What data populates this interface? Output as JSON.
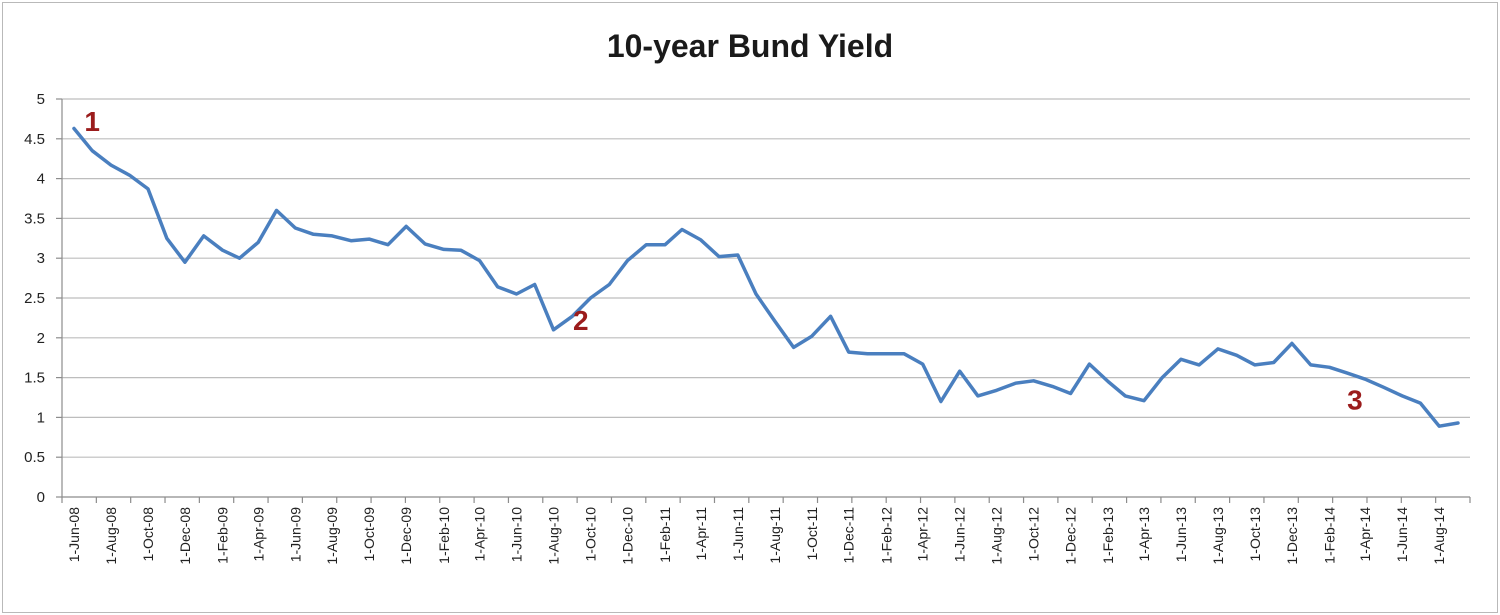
{
  "chart_data": {
    "type": "line",
    "title": "10-year Bund Yield",
    "xlabel": "",
    "ylabel": "",
    "ylim": [
      0,
      5
    ],
    "yticks": [
      "0",
      "0.5",
      "1",
      "1.5",
      "2",
      "2.5",
      "3",
      "3.5",
      "4",
      "4.5",
      "5"
    ],
    "grid": true,
    "x_tick_labels": [
      "1-Jun-08",
      "1-Aug-08",
      "1-Oct-08",
      "1-Dec-08",
      "1-Feb-09",
      "1-Apr-09",
      "1-Jun-09",
      "1-Aug-09",
      "1-Oct-09",
      "1-Dec-09",
      "1-Feb-10",
      "1-Apr-10",
      "1-Jun-10",
      "1-Aug-10",
      "1-Oct-10",
      "1-Dec-10",
      "1-Feb-11",
      "1-Apr-11",
      "1-Jun-11",
      "1-Aug-11",
      "1-Oct-11",
      "1-Dec-11",
      "1-Feb-12",
      "1-Apr-12",
      "1-Jun-12",
      "1-Aug-12",
      "1-Oct-12",
      "1-Dec-12",
      "1-Feb-13",
      "1-Apr-13",
      "1-Jun-13",
      "1-Aug-13",
      "1-Oct-13",
      "1-Dec-13",
      "1-Feb-14",
      "1-Apr-14",
      "1-Jun-14",
      "1-Aug-14"
    ],
    "series": [
      {
        "color": "#4a7fbf",
        "x": [
          "2008-06-01",
          "2008-07-01",
          "2008-08-01",
          "2008-09-01",
          "2008-10-01",
          "2008-11-01",
          "2008-12-01",
          "2009-01-01",
          "2009-02-01",
          "2009-03-01",
          "2009-04-01",
          "2009-05-01",
          "2009-06-01",
          "2009-07-01",
          "2009-08-01",
          "2009-09-01",
          "2009-10-01",
          "2009-11-01",
          "2009-12-01",
          "2010-01-01",
          "2010-02-01",
          "2010-03-01",
          "2010-04-01",
          "2010-05-01",
          "2010-06-01",
          "2010-07-01",
          "2010-08-01",
          "2010-09-01",
          "2010-10-01",
          "2010-11-01",
          "2010-12-01",
          "2011-01-01",
          "2011-02-01",
          "2011-03-01",
          "2011-04-01",
          "2011-05-01",
          "2011-06-01",
          "2011-07-01",
          "2011-08-01",
          "2011-09-01",
          "2011-10-01",
          "2011-11-01",
          "2011-12-01",
          "2012-01-01",
          "2012-02-01",
          "2012-03-01",
          "2012-04-01",
          "2012-05-01",
          "2012-06-01",
          "2012-07-01",
          "2012-08-01",
          "2012-09-01",
          "2012-10-01",
          "2012-11-01",
          "2012-12-01",
          "2013-01-01",
          "2013-02-01",
          "2013-03-01",
          "2013-04-01",
          "2013-05-01",
          "2013-06-01",
          "2013-07-01",
          "2013-08-01",
          "2013-09-01",
          "2013-10-01",
          "2013-11-01",
          "2013-12-01",
          "2014-01-01",
          "2014-02-01",
          "2014-03-01",
          "2014-04-01",
          "2014-05-01",
          "2014-06-01",
          "2014-07-01",
          "2014-08-01",
          "2014-09-01"
        ],
        "values": [
          4.63,
          4.35,
          4.17,
          4.04,
          3.87,
          3.25,
          2.95,
          3.28,
          3.1,
          3.0,
          3.2,
          3.6,
          3.38,
          3.3,
          3.28,
          3.22,
          3.24,
          3.17,
          3.4,
          3.18,
          3.11,
          3.1,
          2.97,
          2.64,
          2.55,
          2.67,
          2.1,
          2.27,
          2.5,
          2.67,
          2.97,
          3.17,
          3.17,
          3.36,
          3.23,
          3.02,
          3.04,
          2.55,
          2.21,
          1.88,
          2.02,
          2.27,
          1.82,
          1.8,
          1.8,
          1.8,
          1.67,
          1.2,
          1.58,
          1.27,
          1.34,
          1.43,
          1.46,
          1.39,
          1.3,
          1.67,
          1.45,
          1.27,
          1.21,
          1.5,
          1.73,
          1.66,
          1.86,
          1.78,
          1.66,
          1.69,
          1.93,
          1.66,
          1.63,
          1.56,
          1.48,
          1.38,
          1.27,
          1.18,
          0.89,
          0.93
        ]
      }
    ],
    "annotations": [
      {
        "text": "1",
        "x": "2008-07-01",
        "y": 4.6
      },
      {
        "text": "2",
        "x": "2010-09-15",
        "y": 2.1
      },
      {
        "text": "3",
        "x": "2014-03-15",
        "y": 1.1
      }
    ]
  }
}
